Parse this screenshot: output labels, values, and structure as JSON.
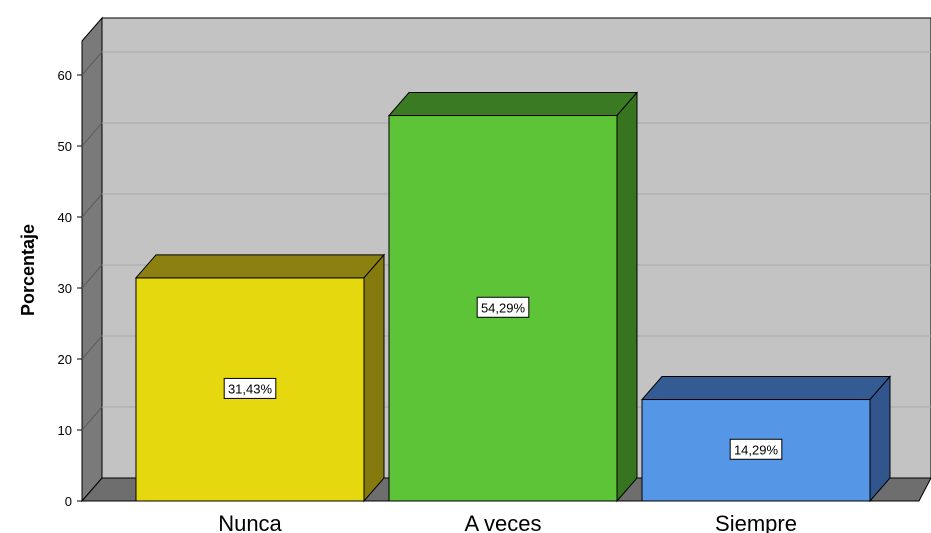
{
  "chart_data": {
    "type": "bar",
    "title": "",
    "xlabel": "",
    "ylabel": "Porcentaje",
    "ylim": [
      0,
      60
    ],
    "yticks": [
      0,
      10,
      20,
      30,
      40,
      50,
      60
    ],
    "categories": [
      "Nunca",
      "A veces",
      "Siempre"
    ],
    "values": [
      31.43,
      54.29,
      14.29
    ],
    "data_labels": [
      "31,43%",
      "54,29%",
      "14,29%"
    ],
    "colors": {
      "bars": [
        "#e6d80e",
        "#5dc337",
        "#5596e6"
      ],
      "bar_tops": [
        "#8c8010",
        "#3a7a22",
        "#345b94"
      ],
      "bar_sides": [
        "#847a0d",
        "#37741f",
        "#31558c"
      ],
      "plot_back": "#c3c3c3",
      "wall": "#7a7a7a",
      "floor": "#6e6e6e"
    },
    "grid": true,
    "style": "3d"
  }
}
